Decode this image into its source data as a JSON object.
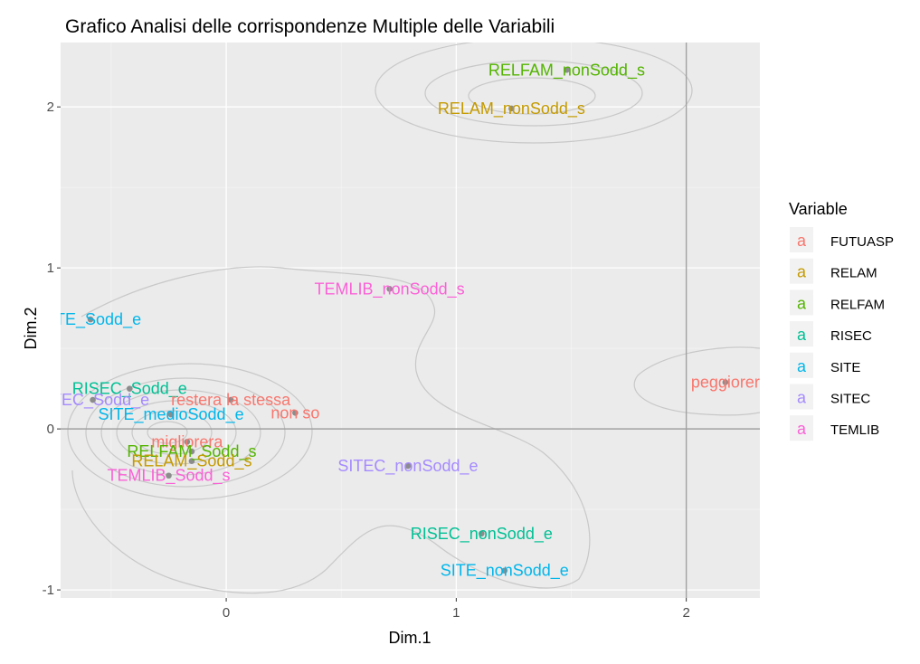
{
  "chart_data": {
    "type": "scatter",
    "title": "Grafico Analisi delle corrispondenze Multiple delle Variabili",
    "xlabel": "Dim.1",
    "ylabel": "Dim.2",
    "xlim": [
      -0.72,
      2.32
    ],
    "ylim": [
      -1.05,
      2.4
    ],
    "x_ticks": [
      0,
      1,
      2
    ],
    "x_tick_labels": [
      "0",
      "1",
      "2"
    ],
    "y_ticks": [
      -1,
      0,
      1,
      2
    ],
    "y_tick_labels": [
      "-1",
      "0",
      "1",
      "2"
    ],
    "reference_lines": {
      "x": 2,
      "y": 0
    },
    "grid": true,
    "background": "#ebebeb",
    "legend": {
      "title": "Variable",
      "placement": "right",
      "key_glyph": "a",
      "entries": [
        {
          "name": "FUTUASP",
          "color": "#F8766D"
        },
        {
          "name": "RELAM",
          "color": "#C49A00"
        },
        {
          "name": "RELFAM",
          "color": "#53B400"
        },
        {
          "name": "RISEC",
          "color": "#00C094"
        },
        {
          "name": "SITE",
          "color": "#00B6EB"
        },
        {
          "name": "SITEC",
          "color": "#A58AFF"
        },
        {
          "name": "TEMLIB",
          "color": "#FB61D7"
        }
      ]
    },
    "points": [
      {
        "label": "RELFAM_nonSodd_s",
        "variable": "RELFAM",
        "x": 1.48,
        "y": 2.23
      },
      {
        "label": "RELAM_nonSodd_s",
        "variable": "RELAM",
        "x": 1.24,
        "y": 1.99
      },
      {
        "label": "TEMLIB_nonSodd_s",
        "variable": "TEMLIB",
        "x": 0.71,
        "y": 0.87
      },
      {
        "label": "SITE_Sodd_e",
        "variable": "SITE",
        "x": -0.59,
        "y": 0.68
      },
      {
        "label": "peggiorer",
        "variable": "FUTUASP",
        "x": 2.17,
        "y": 0.29
      },
      {
        "label": "RISEC_Sodd_e",
        "variable": "RISEC",
        "x": -0.42,
        "y": 0.25
      },
      {
        "label": "SITEC_Sodd_e",
        "variable": "SITEC",
        "x": -0.58,
        "y": 0.18
      },
      {
        "label": "restera la stessa",
        "variable": "FUTUASP",
        "x": 0.02,
        "y": 0.18
      },
      {
        "label": "SITE_medioSodd_e",
        "variable": "SITE",
        "x": -0.24,
        "y": 0.09
      },
      {
        "label": "non so",
        "variable": "FUTUASP",
        "x": 0.3,
        "y": 0.1
      },
      {
        "label": "migliorera",
        "variable": "FUTUASP",
        "x": -0.17,
        "y": -0.08
      },
      {
        "label": "RELFAM_Sodd_s",
        "variable": "RELFAM",
        "x": -0.15,
        "y": -0.14
      },
      {
        "label": "RELAM_Sodd_s",
        "variable": "RELAM",
        "x": -0.15,
        "y": -0.2
      },
      {
        "label": "TEMLIB_Sodd_s",
        "variable": "TEMLIB",
        "x": -0.25,
        "y": -0.29
      },
      {
        "label": "SITEC_nonSodd_e",
        "variable": "SITEC",
        "x": 0.79,
        "y": -0.23
      },
      {
        "label": "RISEC_nonSodd_e",
        "variable": "RISEC",
        "x": 1.11,
        "y": -0.65
      },
      {
        "label": "SITE_nonSodd_e",
        "variable": "SITE",
        "x": 1.21,
        "y": -0.88
      }
    ]
  }
}
